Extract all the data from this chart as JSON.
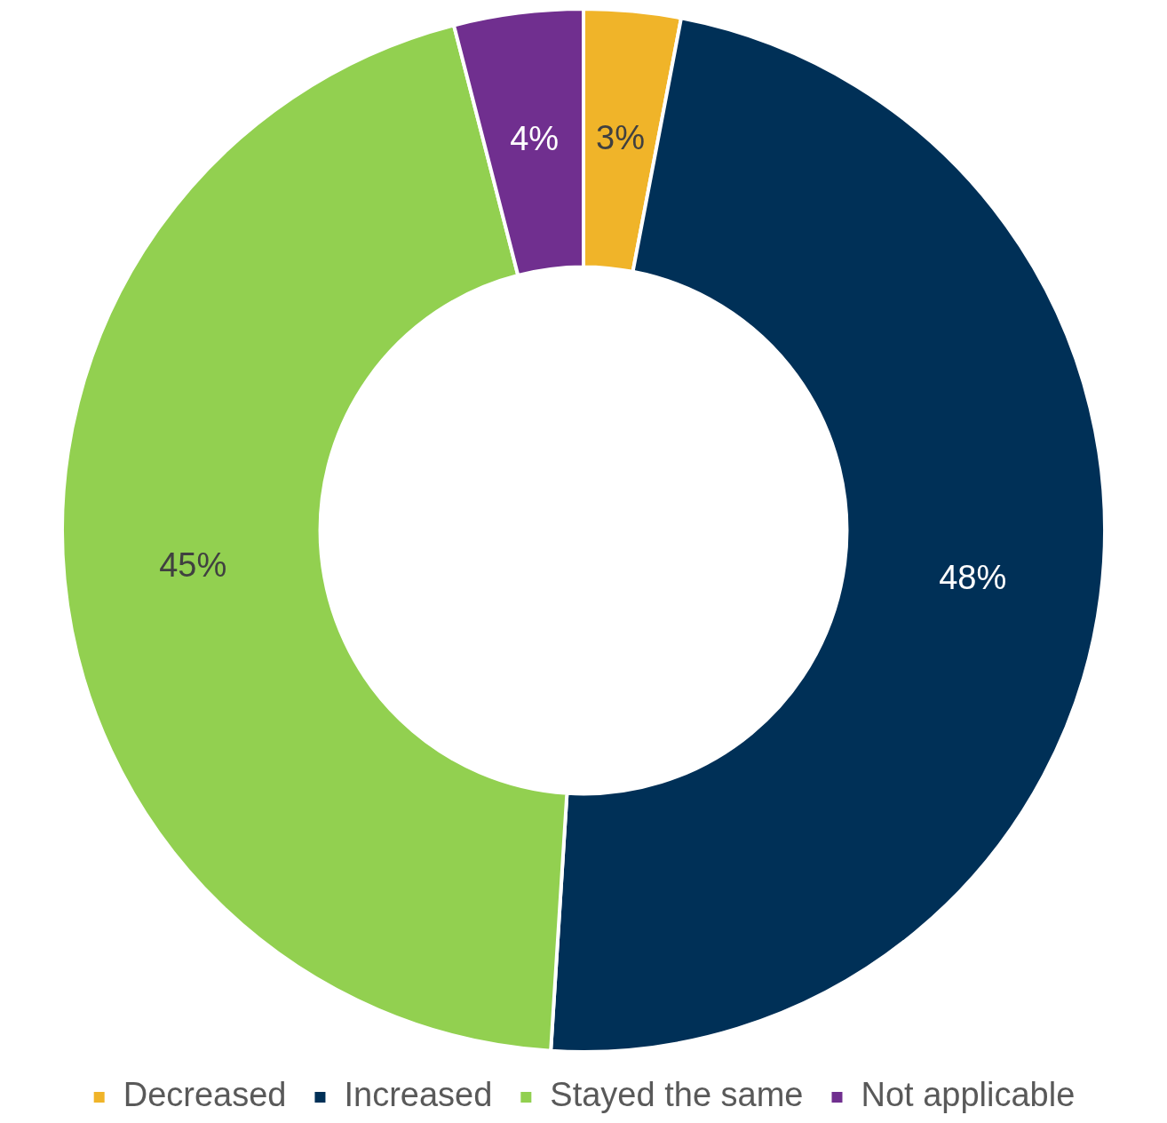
{
  "chart_data": {
    "type": "donut",
    "categories": [
      "Decreased",
      "Increased",
      "Stayed the same",
      "Not applicable"
    ],
    "values": [
      3,
      48,
      45,
      4
    ],
    "value_labels": [
      "3%",
      "48%",
      "45%",
      "4%"
    ],
    "colors": [
      "#f0b429",
      "#003057",
      "#92d050",
      "#702f8f"
    ],
    "legend": "bottom"
  }
}
